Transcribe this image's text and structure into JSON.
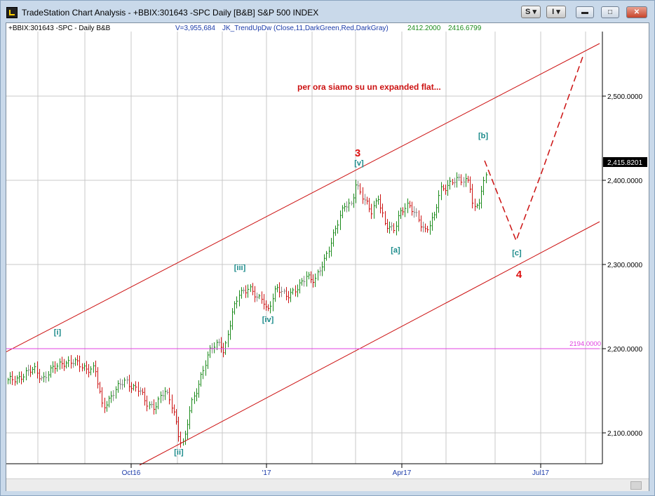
{
  "window": {
    "title": "TradeStation Chart Analysis - +BBIX:301643 -SPC Daily [B&B] S&P 500 INDEX"
  },
  "toolbar": {
    "s_label": "S",
    "i_label": "I"
  },
  "chart_header": {
    "symbol": "+BBIX:301643 -SPC - Daily  B&B",
    "volume": "V=3,955,684",
    "indicator": "JK_TrendUpDw (Close,11,DarkGreen,Red,DarkGray)",
    "value1": "2412.2000",
    "value2": "2416.6799"
  },
  "chart_data": {
    "type": "ohlc-bar",
    "y_axis": {
      "min": 2060,
      "max": 2550,
      "ticks": [
        "2,100.0000",
        "2,200.0000",
        "2,300.0000",
        "2,400.0000",
        "2,500.0000"
      ],
      "tick_values": [
        2100,
        2200,
        2300,
        2400,
        2500
      ]
    },
    "x_axis": {
      "ticks": [
        "Oct16",
        "'17",
        "Apr17",
        "Jul17"
      ]
    },
    "last_price": "2,415.8201",
    "horizontal_line": {
      "value": 2194,
      "label": "2194.0000",
      "color": "#e040e0"
    },
    "annotations": [
      {
        "text": "per ora siamo su un expanded flat...",
        "color": "#cc1111"
      },
      {
        "text": "3",
        "color": "#dd1111"
      },
      {
        "text": "4",
        "color": "#dd1111"
      },
      {
        "text": "[i]",
        "color": "#1a8a8a"
      },
      {
        "text": "[ii]",
        "color": "#1a8a8a"
      },
      {
        "text": "[iii]",
        "color": "#1a8a8a"
      },
      {
        "text": "[iv]",
        "color": "#1a8a8a"
      },
      {
        "text": "[v]",
        "color": "#1a8a8a"
      },
      {
        "text": "[a]",
        "color": "#1a8a8a"
      },
      {
        "text": "[b]",
        "color": "#1a8a8a"
      },
      {
        "text": "[c]",
        "color": "#1a8a8a"
      }
    ],
    "channel_color": "#cc1111",
    "up_color": "#1a8a1a",
    "down_color": "#cc1111",
    "neutral_color": "#888888",
    "grid": true
  }
}
